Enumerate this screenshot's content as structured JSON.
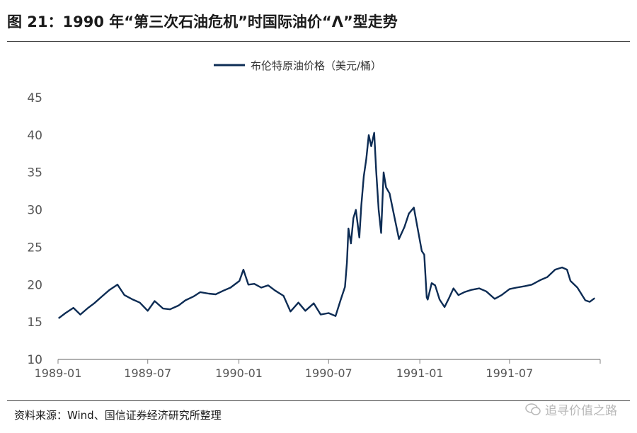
{
  "header": {
    "title": "图 21：1990 年“第三次石油危机”时国际油价“Λ”型走势"
  },
  "footer": {
    "source": "资料来源：Wind、国信证券经济研究所整理",
    "watermark": "追寻价值之路",
    "watermark_icon": "wechat-icon"
  },
  "colors": {
    "series": "#0d2c54",
    "axis": "#808080",
    "text": "#1a1a1a"
  },
  "chart_data": {
    "type": "line",
    "title": "",
    "xlabel": "",
    "ylabel": "",
    "ylim": [
      10,
      45
    ],
    "yticks": [
      10,
      15,
      20,
      25,
      30,
      35,
      40,
      45
    ],
    "xlim": [
      "1989-01",
      "1991-12"
    ],
    "xticks": [
      "1989-01",
      "1989-07",
      "1990-01",
      "1990-07",
      "1991-01",
      "1991-07"
    ],
    "grid": false,
    "legend_position": "top-center",
    "series": [
      {
        "name": "布伦特原油价格（美元/桶）",
        "x": [
          "1989-01-02",
          "1989-01-16",
          "1989-02-01",
          "1989-02-15",
          "1989-03-01",
          "1989-03-15",
          "1989-04-01",
          "1989-04-15",
          "1989-05-01",
          "1989-05-15",
          "1989-06-01",
          "1989-06-15",
          "1989-07-01",
          "1989-07-15",
          "1989-08-01",
          "1989-08-15",
          "1989-09-01",
          "1989-09-15",
          "1989-10-01",
          "1989-10-15",
          "1989-11-01",
          "1989-11-15",
          "1989-12-01",
          "1989-12-15",
          "1990-01-02",
          "1990-01-10",
          "1990-01-20",
          "1990-02-01",
          "1990-02-15",
          "1990-03-01",
          "1990-03-15",
          "1990-04-01",
          "1990-04-15",
          "1990-05-01",
          "1990-05-15",
          "1990-06-01",
          "1990-06-15",
          "1990-07-01",
          "1990-07-15",
          "1990-07-25",
          "1990-08-03",
          "1990-08-07",
          "1990-08-10",
          "1990-08-15",
          "1990-08-20",
          "1990-08-25",
          "1990-09-01",
          "1990-09-05",
          "1990-09-10",
          "1990-09-15",
          "1990-09-20",
          "1990-09-25",
          "1990-10-01",
          "1990-10-05",
          "1990-10-10",
          "1990-10-15",
          "1990-10-20",
          "1990-10-25",
          "1990-11-01",
          "1990-11-10",
          "1990-11-20",
          "1990-12-01",
          "1990-12-10",
          "1990-12-20",
          "1991-01-05",
          "1991-01-10",
          "1991-01-15",
          "1991-01-17",
          "1991-01-25",
          "1991-02-01",
          "1991-02-10",
          "1991-02-20",
          "1991-03-01",
          "1991-03-10",
          "1991-03-20",
          "1991-04-01",
          "1991-04-15",
          "1991-05-01",
          "1991-05-15",
          "1991-06-01",
          "1991-06-15",
          "1991-07-01",
          "1991-07-15",
          "1991-08-01",
          "1991-08-15",
          "1991-09-01",
          "1991-09-15",
          "1991-10-01",
          "1991-10-15",
          "1991-10-25",
          "1991-11-01",
          "1991-11-15",
          "1991-12-01",
          "1991-12-10",
          "1991-12-20"
        ],
        "values": [
          15.5,
          16.2,
          16.9,
          16.0,
          16.8,
          17.5,
          18.5,
          19.3,
          20.0,
          18.6,
          18.0,
          17.6,
          16.5,
          17.8,
          16.8,
          16.7,
          17.2,
          17.9,
          18.4,
          19.0,
          18.8,
          18.7,
          19.2,
          19.6,
          20.5,
          22.0,
          20.0,
          20.1,
          19.6,
          19.9,
          19.2,
          18.5,
          16.4,
          17.6,
          16.5,
          17.5,
          16.0,
          16.2,
          15.8,
          17.9,
          19.7,
          23.0,
          27.5,
          25.5,
          28.9,
          30.0,
          26.3,
          30.6,
          34.5,
          36.8,
          40.0,
          38.5,
          40.3,
          35.2,
          30.0,
          26.9,
          35.0,
          33.0,
          32.2,
          29.3,
          26.1,
          27.7,
          29.5,
          30.3,
          24.5,
          24.0,
          18.3,
          18.0,
          20.2,
          19.9,
          18.0,
          17.0,
          18.2,
          19.5,
          18.6,
          19.0,
          19.3,
          19.5,
          19.1,
          18.1,
          18.6,
          19.4,
          19.6,
          19.8,
          20.0,
          20.6,
          21.0,
          22.0,
          22.3,
          22.0,
          20.5,
          19.6,
          17.9,
          17.7,
          18.2
        ]
      }
    ]
  }
}
